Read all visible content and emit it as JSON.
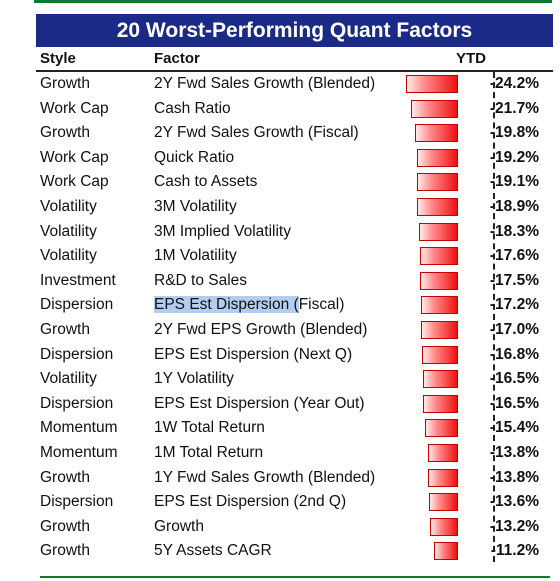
{
  "title": "20 Worst-Performing Quant Factors",
  "headers": {
    "style": "Style",
    "factor": "Factor",
    "ytd": "YTD"
  },
  "rows": [
    {
      "style": "Growth",
      "factor": "2Y Fwd Sales Growth (Blended)",
      "ytd": "-24.2%",
      "value": -24.2
    },
    {
      "style": "Work Cap",
      "factor": "Cash Ratio",
      "ytd": "-21.7%",
      "value": -21.7
    },
    {
      "style": "Growth",
      "factor": "2Y Fwd Sales Growth (Fiscal)",
      "ytd": "-19.8%",
      "value": -19.8
    },
    {
      "style": "Work Cap",
      "factor": "Quick Ratio",
      "ytd": "-19.2%",
      "value": -19.2
    },
    {
      "style": "Work Cap",
      "factor": "Cash to Assets",
      "ytd": "-19.1%",
      "value": -19.1
    },
    {
      "style": "Volatility",
      "factor": "3M Volatility",
      "ytd": "-18.9%",
      "value": -18.9
    },
    {
      "style": "Volatility",
      "factor": "3M Implied Volatility",
      "ytd": "-18.3%",
      "value": -18.3
    },
    {
      "style": "Volatility",
      "factor": "1M Volatility",
      "ytd": "-17.6%",
      "value": -17.6
    },
    {
      "style": "Investment",
      "factor": "R&D to Sales",
      "ytd": "-17.5%",
      "value": -17.5
    },
    {
      "style": "Dispersion",
      "factor_highlight": "EPS Est Dispersion (",
      "factor_rest": "Fiscal)",
      "ytd": "-17.2%",
      "value": -17.2
    },
    {
      "style": "Growth",
      "factor": "2Y Fwd EPS Growth (Blended)",
      "ytd": "-17.0%",
      "value": -17.0
    },
    {
      "style": "Dispersion",
      "factor": "EPS Est Dispersion (Next Q)",
      "ytd": "-16.8%",
      "value": -16.8
    },
    {
      "style": "Volatility",
      "factor": "1Y Volatility",
      "ytd": "-16.5%",
      "value": -16.5
    },
    {
      "style": "Dispersion",
      "factor": "EPS Est Dispersion (Year Out)",
      "ytd": "-16.5%",
      "value": -16.5
    },
    {
      "style": "Momentum",
      "factor": "1W Total Return",
      "ytd": "-15.4%",
      "value": -15.4
    },
    {
      "style": "Momentum",
      "factor": "1M Total Return",
      "ytd": "-13.8%",
      "value": -13.8
    },
    {
      "style": "Growth",
      "factor": "1Y Fwd Sales Growth (Blended)",
      "ytd": "-13.8%",
      "value": -13.8
    },
    {
      "style": "Dispersion",
      "factor": "EPS Est Dispersion (2nd Q)",
      "ytd": "-13.6%",
      "value": -13.6
    },
    {
      "style": "Growth",
      "factor": "Growth",
      "ytd": "-13.2%",
      "value": -13.2
    },
    {
      "style": "Growth",
      "factor": "5Y Assets CAGR",
      "ytd": "-11.2%",
      "value": -11.2
    }
  ],
  "colors": {
    "title_bg": "#1a2a86",
    "bar": "#ee1111",
    "divider": "#0a7a2f",
    "selection": "#b3cdef"
  }
}
